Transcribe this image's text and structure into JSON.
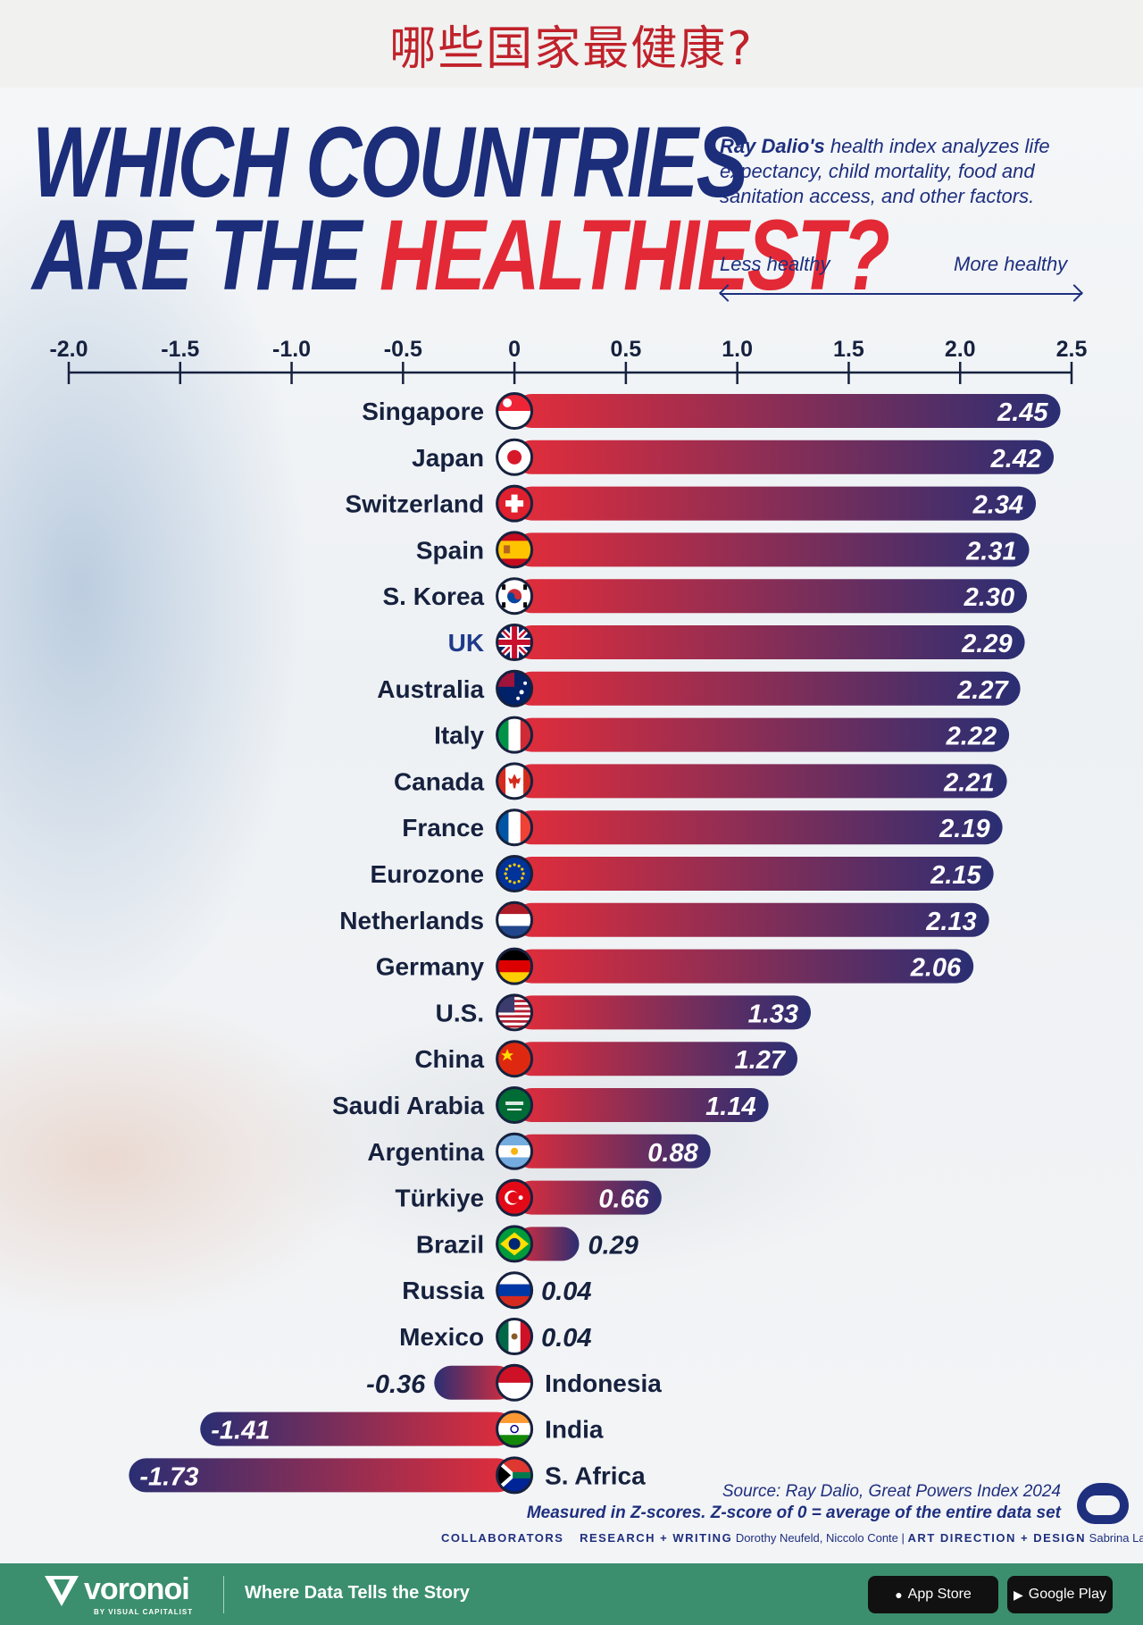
{
  "banner": {
    "text": "哪些国家最健康?"
  },
  "header": {
    "title_line1": "WHICH COUNTRIES",
    "title_line2_prefix": "ARE THE ",
    "title_line2_accent": "HEALTHIEST?",
    "subtitle_bold": "Ray Dalio's",
    "subtitle_rest": " health index analyzes life expectancy, child mortality, food and sanitation access, and other factors.",
    "scale_left": "Less healthy",
    "scale_right": "More healthy"
  },
  "colors": {
    "title": "#1c2d7a",
    "accent": "#e32936",
    "bar_start": "#e32d3a",
    "bar_end": "#2a2e73",
    "text": "#16213e",
    "highlight": "#1e3a8a",
    "footer": "#3b8f6e"
  },
  "chart_data": {
    "type": "bar",
    "orientation": "horizontal",
    "title": "WHICH COUNTRIES ARE THE HEALTHIEST?",
    "xlabel": "",
    "ylabel": "",
    "xlim": [
      -2.0,
      2.5
    ],
    "ticks": [
      -2.0,
      -1.5,
      -1.0,
      -0.5,
      0,
      0.5,
      1.0,
      1.5,
      2.0,
      2.5
    ],
    "tick_labels": [
      "-2.0",
      "-1.5",
      "-1.0",
      "-0.5",
      "0",
      "0.5",
      "1.0",
      "1.5",
      "2.0",
      "2.5"
    ],
    "categories": [
      "Singapore",
      "Japan",
      "Switzerland",
      "Spain",
      "S. Korea",
      "UK",
      "Australia",
      "Italy",
      "Canada",
      "France",
      "Eurozone",
      "Netherlands",
      "Germany",
      "U.S.",
      "China",
      "Saudi Arabia",
      "Argentina",
      "Türkiye",
      "Brazil",
      "Russia",
      "Mexico",
      "Indonesia",
      "India",
      "S. Africa"
    ],
    "values": [
      2.45,
      2.42,
      2.34,
      2.31,
      2.3,
      2.29,
      2.27,
      2.22,
      2.21,
      2.19,
      2.15,
      2.13,
      2.06,
      1.33,
      1.27,
      1.14,
      0.88,
      0.66,
      0.29,
      0.04,
      0.04,
      -0.36,
      -1.41,
      -1.73
    ],
    "value_labels": [
      "2.45",
      "2.42",
      "2.34",
      "2.31",
      "2.30",
      "2.29",
      "2.27",
      "2.22",
      "2.21",
      "2.19",
      "2.15",
      "2.13",
      "2.06",
      "1.33",
      "1.27",
      "1.14",
      "0.88",
      "0.66",
      "0.29",
      "0.04",
      "0.04",
      "-0.36",
      "-1.41",
      "-1.73"
    ],
    "flags": [
      "singapore-flag-icon",
      "japan-flag-icon",
      "switzerland-flag-icon",
      "spain-flag-icon",
      "south-korea-flag-icon",
      "uk-flag-icon",
      "australia-flag-icon",
      "italy-flag-icon",
      "canada-flag-icon",
      "france-flag-icon",
      "eurozone-flag-icon",
      "netherlands-flag-icon",
      "germany-flag-icon",
      "us-flag-icon",
      "china-flag-icon",
      "saudi-arabia-flag-icon",
      "argentina-flag-icon",
      "turkiye-flag-icon",
      "brazil-flag-icon",
      "russia-flag-icon",
      "mexico-flag-icon",
      "indonesia-flag-icon",
      "india-flag-icon",
      "south-africa-flag-icon"
    ],
    "highlight": [
      "UK"
    ],
    "grid": false,
    "legend": "none"
  },
  "source": {
    "line1": "Source: Ray Dalio, Great Powers Index 2024",
    "line2": "Measured in Z-scores. Z-score of 0 = average of the entire data set"
  },
  "credits": {
    "collaborators": "COLLABORATORS",
    "research_label": "RESEARCH + WRITING",
    "research_names": "Dorothy Neufeld, Niccolo Conte",
    "separator": "|",
    "design_label": "ART DIRECTION + DESIGN",
    "design_names": "Sabrina Lam"
  },
  "footer": {
    "brand": "voronoi",
    "brand_sub": "BY VISUAL CAPITALIST",
    "tagline": "Where Data Tells the Story",
    "app_store": "App Store",
    "google_play": "Google Play"
  }
}
